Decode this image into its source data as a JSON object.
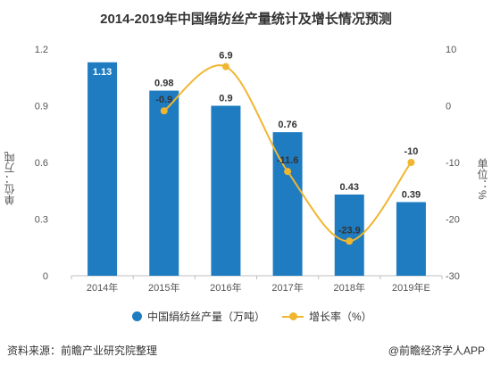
{
  "chart_data": {
    "title": "2014-2019年中国绢纺丝产量统计及增长情况预测",
    "categories": [
      "2014年",
      "2015年",
      "2016年",
      "2017年",
      "2018年",
      "2019年E"
    ],
    "y_left": {
      "label": "单位：万吨",
      "range": [
        0,
        1.2
      ],
      "ticks": [
        "0",
        "0.3",
        "0.6",
        "0.9",
        "1.2"
      ]
    },
    "y_right": {
      "label": "单位：%",
      "range": [
        -30,
        10
      ],
      "ticks": [
        "10",
        "0",
        "-10",
        "-20",
        "-30"
      ]
    },
    "series": [
      {
        "name": "中国绢纺丝产量（万吨）",
        "type": "bar",
        "axis": "left",
        "color": "#1f7cc1",
        "values": [
          1.13,
          0.98,
          0.9,
          0.76,
          0.43,
          0.39
        ],
        "labels": [
          "1.13",
          "0.98",
          "0.9",
          "0.76",
          "0.43",
          "0.39"
        ]
      },
      {
        "name": "增长率（%）",
        "type": "line",
        "axis": "right",
        "color": "#f0b630",
        "values": [
          null,
          -0.9,
          6.9,
          -11.6,
          -23.9,
          -10
        ],
        "labels": [
          "",
          "-0.9",
          "6.9",
          "-11.6",
          "-23.9",
          "-10"
        ]
      }
    ],
    "grid": false,
    "legend_position": "bottom"
  },
  "footer": {
    "source": "资料来源：前瞻产业研究院整理",
    "credit": "@前瞻经济学人APP"
  }
}
